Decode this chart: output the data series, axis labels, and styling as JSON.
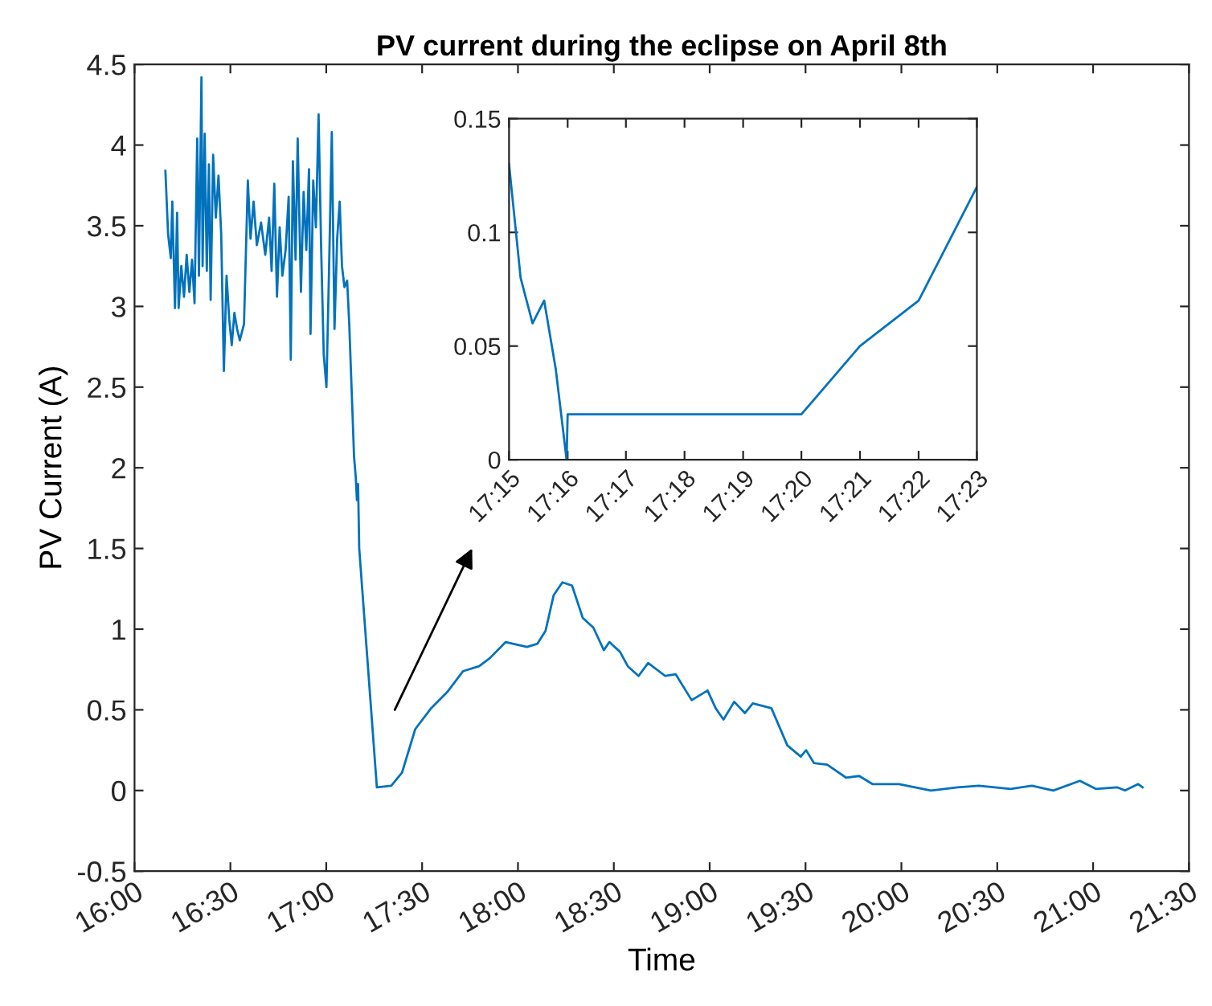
{
  "chart_data": [
    {
      "type": "line",
      "title": "PV current during the eclipse on April 8th",
      "xlabel": "Time",
      "ylabel": "PV Current (A)",
      "grid": false,
      "legend": false,
      "xlim": [
        16,
        21.5
      ],
      "xticks": [
        {
          "value": 16,
          "label": "16:00"
        },
        {
          "value": 16.5,
          "label": "16:30"
        },
        {
          "value": 17,
          "label": "17:00"
        },
        {
          "value": 17.5,
          "label": "17:30"
        },
        {
          "value": 18,
          "label": "18:00"
        },
        {
          "value": 18.5,
          "label": "18:30"
        },
        {
          "value": 19,
          "label": "19:00"
        },
        {
          "value": 19.5,
          "label": "19:30"
        },
        {
          "value": 20,
          "label": "20:00"
        },
        {
          "value": 20.5,
          "label": "20:30"
        },
        {
          "value": 21,
          "label": "21:00"
        },
        {
          "value": 21.5,
          "label": "21:30"
        }
      ],
      "ylim": [
        -0.5,
        4.5
      ],
      "yticks": [
        -0.5,
        0,
        0.5,
        1,
        1.5,
        2,
        2.5,
        3,
        3.5,
        4,
        4.5
      ],
      "series": [
        {
          "color": "#0072bd",
          "x": [
            16.161,
            16.175,
            16.189,
            16.197,
            16.211,
            16.222,
            16.23,
            16.244,
            16.258,
            16.272,
            16.286,
            16.3,
            16.313,
            16.327,
            16.336,
            16.349,
            16.355,
            16.366,
            16.377,
            16.388,
            16.397,
            16.41,
            16.424,
            16.438,
            16.452,
            16.466,
            16.48,
            16.494,
            16.507,
            16.521,
            16.535,
            16.549,
            16.571,
            16.591,
            16.605,
            16.621,
            16.638,
            16.66,
            16.682,
            16.702,
            16.715,
            16.729,
            16.743,
            16.757,
            16.771,
            16.788,
            16.804,
            16.815,
            16.826,
            16.84,
            16.851,
            16.868,
            16.882,
            16.896,
            16.91,
            16.918,
            16.932,
            16.946,
            16.96,
            16.973,
            16.987,
            17.001,
            17.015,
            17.029,
            17.043,
            17.057,
            17.07,
            17.082,
            17.095,
            17.109,
            17.12,
            17.131,
            17.145,
            17.154,
            17.16,
            17.166,
            17.172,
            17.264,
            17.339,
            17.395,
            17.464,
            17.547,
            17.631,
            17.714,
            17.797,
            17.853,
            17.936,
            18.047,
            18.102,
            18.144,
            18.186,
            18.232,
            18.282,
            18.338,
            18.393,
            18.448,
            18.477,
            18.532,
            18.573,
            18.629,
            18.679,
            18.768,
            18.823,
            18.906,
            18.989,
            19.031,
            19.072,
            19.128,
            19.184,
            19.225,
            19.322,
            19.405,
            19.475,
            19.503,
            19.544,
            19.613,
            19.711,
            19.78,
            19.849,
            19.988,
            20.154,
            20.293,
            20.404,
            20.57,
            20.681,
            20.792,
            20.931,
            21.014,
            21.125,
            21.166,
            21.235,
            21.258
          ],
          "values": [
            3.84,
            3.45,
            3.3,
            3.65,
            2.99,
            3.58,
            2.99,
            3.25,
            3.06,
            3.32,
            3.09,
            3.29,
            3.02,
            4.04,
            3.19,
            4.42,
            3.25,
            4.07,
            3.22,
            3.88,
            3.04,
            3.94,
            3.55,
            3.81,
            3.45,
            2.6,
            3.19,
            2.92,
            2.76,
            2.96,
            2.86,
            2.79,
            2.89,
            3.78,
            3.42,
            3.65,
            3.38,
            3.52,
            3.32,
            3.55,
            3.22,
            3.76,
            3.06,
            3.49,
            3.19,
            3.35,
            3.68,
            2.67,
            3.9,
            3.29,
            4.04,
            3.09,
            3.71,
            3.35,
            3.85,
            2.83,
            3.78,
            3.49,
            4.19,
            3.38,
            2.7,
            2.5,
            3.25,
            4.08,
            2.86,
            3.42,
            3.65,
            3.25,
            3.12,
            3.16,
            2.89,
            2.53,
            2.07,
            1.94,
            1.8,
            1.9,
            1.5,
            0.02,
            0.03,
            0.11,
            0.38,
            0.51,
            0.61,
            0.74,
            0.77,
            0.82,
            0.92,
            0.89,
            0.91,
            0.99,
            1.21,
            1.29,
            1.27,
            1.07,
            1.01,
            0.87,
            0.92,
            0.86,
            0.77,
            0.71,
            0.79,
            0.71,
            0.72,
            0.56,
            0.62,
            0.51,
            0.44,
            0.55,
            0.48,
            0.54,
            0.51,
            0.28,
            0.21,
            0.25,
            0.17,
            0.16,
            0.08,
            0.09,
            0.04,
            0.04,
            0,
            0.02,
            0.03,
            0.01,
            0.03,
            0,
            0.06,
            0.01,
            0.02,
            0,
            0.04,
            0.02
          ]
        }
      ]
    },
    {
      "type": "line",
      "grid": false,
      "legend": false,
      "xlim": [
        17.25,
        17.3833
      ],
      "xticks": [
        {
          "value": 17.25,
          "label": "17:15"
        },
        {
          "value": 17.2667,
          "label": "17:16"
        },
        {
          "value": 17.2833,
          "label": "17:17"
        },
        {
          "value": 17.3,
          "label": "17:18"
        },
        {
          "value": 17.3167,
          "label": "17:19"
        },
        {
          "value": 17.3333,
          "label": "17:20"
        },
        {
          "value": 17.35,
          "label": "17:21"
        },
        {
          "value": 17.3667,
          "label": "17:22"
        },
        {
          "value": 17.3833,
          "label": "17:23"
        }
      ],
      "ylim": [
        0,
        0.15
      ],
      "yticks": [
        0,
        0.05,
        0.1,
        0.15
      ],
      "series": [
        {
          "color": "#0072bd",
          "x": [
            17.25,
            17.2533,
            17.2567,
            17.26,
            17.2633,
            17.2664,
            17.2667,
            17.3333,
            17.35,
            17.3667,
            17.3833
          ],
          "values": [
            0.13,
            0.08,
            0.06,
            0.07,
            0.04,
            0,
            0.02,
            0.02,
            0.05,
            0.07,
            0.12
          ]
        }
      ]
    }
  ]
}
